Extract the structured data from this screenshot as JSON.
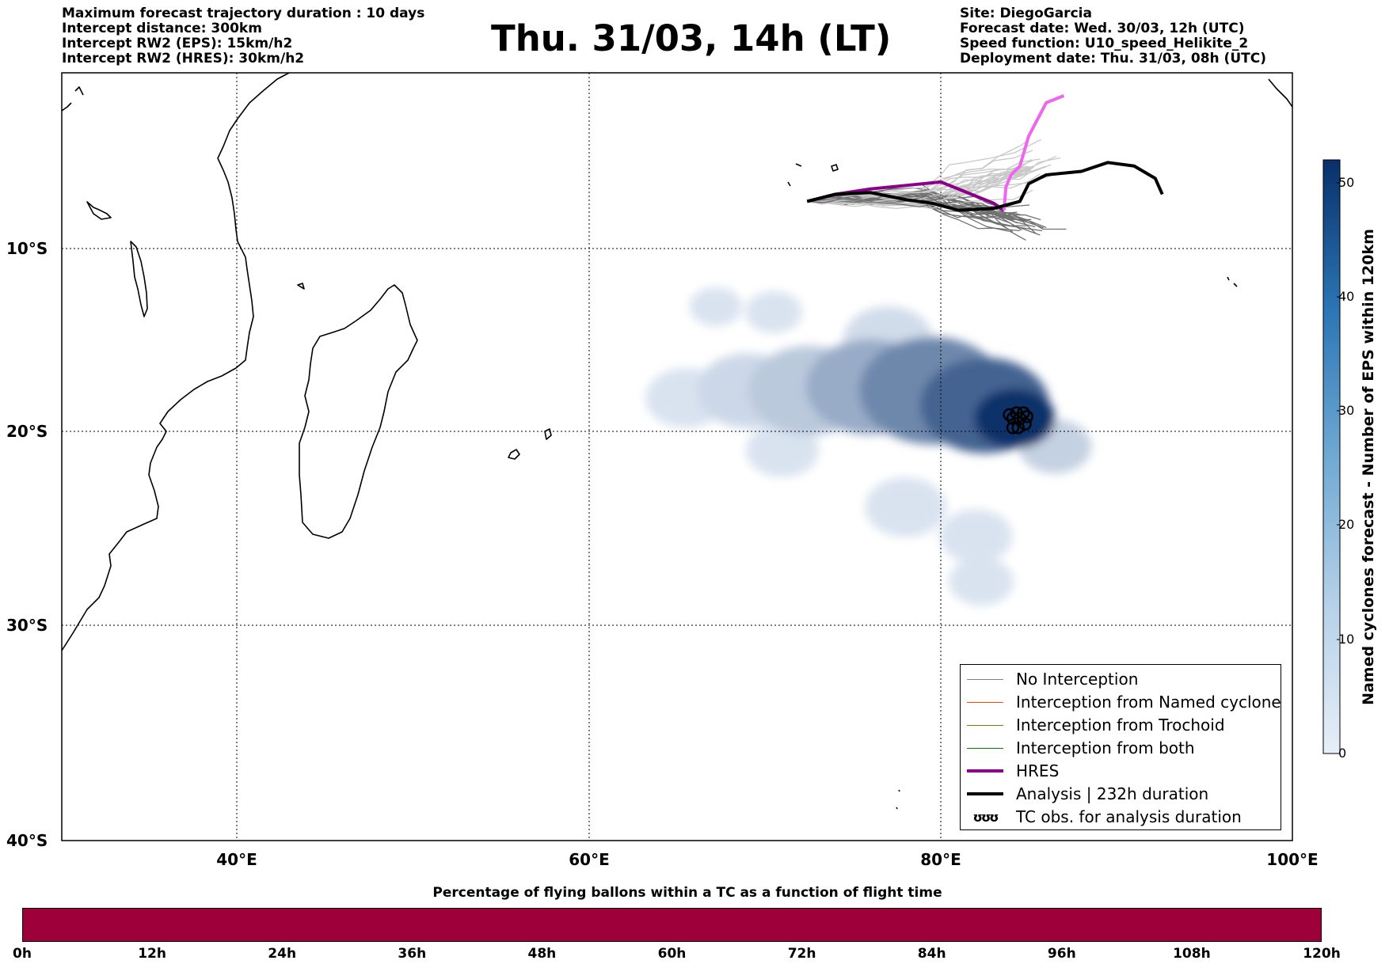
{
  "header_left": [
    "Maximum forecast trajectory duration : 10 days",
    "Intercept distance: 300km",
    "Intercept RW2 (EPS):  15km/h2",
    "Intercept RW2 (HRES): 30km/h2"
  ],
  "title": "Thu. 31/03, 14h (LT)",
  "header_right": [
    "Site: DiegoGarcia",
    "Forecast date: Wed. 30/03, 12h (UTC)",
    "Speed function: U10_speed_Helikite_2",
    "Deployment date: Thu. 31/03, 08h (UTC)"
  ],
  "map": {
    "lon_range": [
      30,
      100
    ],
    "lat_range": [
      -40,
      0
    ],
    "lat_labels": [
      {
        "lat": -10,
        "label": "10°S"
      },
      {
        "lat": -20,
        "label": "20°S"
      },
      {
        "lat": -30,
        "label": "30°S"
      },
      {
        "lat": -40,
        "label": "40°S"
      }
    ],
    "lon_labels": [
      {
        "lon": 40,
        "label": "40°E"
      },
      {
        "lon": 60,
        "label": "60°E"
      },
      {
        "lon": 80,
        "label": "80°E"
      },
      {
        "lon": 100,
        "label": "100°E"
      }
    ],
    "site": {
      "name": "DiegoGarcia",
      "lon": 72.4,
      "lat": -7.3
    },
    "hres_track": [
      [
        72.4,
        -7.3
      ],
      [
        74,
        -6.9
      ],
      [
        76,
        -6.6
      ],
      [
        78,
        -6.4
      ],
      [
        80,
        -6.2
      ],
      [
        81.5,
        -6.8
      ],
      [
        83,
        -7.4
      ],
      [
        83.6,
        -7.8
      ],
      [
        83.7,
        -6.5
      ],
      [
        84,
        -5.8
      ],
      [
        84.5,
        -5.3
      ],
      [
        85,
        -3.6
      ],
      [
        86,
        -1.7
      ],
      [
        87,
        -1.3
      ]
    ],
    "analysis_track": [
      [
        72.4,
        -7.3
      ],
      [
        74,
        -6.9
      ],
      [
        76,
        -6.8
      ],
      [
        78,
        -7.2
      ],
      [
        79.5,
        -7.4
      ],
      [
        81,
        -7.8
      ],
      [
        83,
        -7.7
      ],
      [
        84.5,
        -7.3
      ],
      [
        85,
        -6.3
      ],
      [
        86,
        -5.8
      ],
      [
        88,
        -5.6
      ],
      [
        89.5,
        -5.1
      ],
      [
        91,
        -5.3
      ],
      [
        92.2,
        -6.0
      ],
      [
        92.6,
        -6.9
      ]
    ],
    "tc_obs": [
      [
        83.9,
        -19.1
      ],
      [
        84.1,
        -19.3
      ],
      [
        84.3,
        -19.0
      ],
      [
        84.5,
        -19.3
      ],
      [
        84.7,
        -19.0
      ],
      [
        84.1,
        -19.8
      ],
      [
        84.4,
        -19.8
      ],
      [
        84.8,
        -19.6
      ],
      [
        84.9,
        -19.2
      ]
    ],
    "density_blobs": [
      {
        "lon": 84.2,
        "lat": -19.3,
        "r": 2.0,
        "level": 52
      },
      {
        "lon": 82.5,
        "lat": -18.6,
        "r": 3.2,
        "level": 38
      },
      {
        "lon": 79.5,
        "lat": -17.8,
        "r": 3.6,
        "level": 28
      },
      {
        "lon": 76.0,
        "lat": -17.6,
        "r": 3.2,
        "level": 18
      },
      {
        "lon": 72.5,
        "lat": -17.8,
        "r": 3.0,
        "level": 10
      },
      {
        "lon": 69.0,
        "lat": -17.8,
        "r": 2.5,
        "level": 6
      },
      {
        "lon": 65.5,
        "lat": -18.2,
        "r": 2.0,
        "level": 3
      },
      {
        "lon": 67.2,
        "lat": -13.2,
        "r": 1.3,
        "level": 3
      },
      {
        "lon": 70.5,
        "lat": -13.5,
        "r": 1.4,
        "level": 3
      },
      {
        "lon": 71.0,
        "lat": -21.0,
        "r": 1.8,
        "level": 3
      },
      {
        "lon": 86.5,
        "lat": -20.8,
        "r": 1.8,
        "level": 8
      },
      {
        "lon": 78.0,
        "lat": -24.0,
        "r": 2.0,
        "level": 3
      },
      {
        "lon": 82.0,
        "lat": -25.5,
        "r": 1.8,
        "level": 3
      },
      {
        "lon": 82.3,
        "lat": -27.8,
        "r": 1.6,
        "level": 3
      },
      {
        "lon": 77.0,
        "lat": -15.0,
        "r": 2.2,
        "level": 5
      }
    ]
  },
  "colorbar": {
    "label": "Named cyclones forecast - Number of EPS within 120km",
    "min": 0,
    "max": 52,
    "ticks": [
      0,
      10,
      20,
      30,
      40,
      50
    ],
    "low_color": "#e6eef8",
    "high_color": "#08306b"
  },
  "legend": [
    {
      "label": "No Interception",
      "color": "#808080",
      "width": 1.5,
      "style": "line"
    },
    {
      "label": "Interception from Named cyclone",
      "color": "#ff4500",
      "width": 1.5,
      "style": "line"
    },
    {
      "label": "Interception from Trochoid",
      "color": "#808000",
      "width": 1.5,
      "style": "line"
    },
    {
      "label": "Interception from both",
      "color": "#008000",
      "width": 1.5,
      "style": "line"
    },
    {
      "label": "HRES",
      "color": "#8b008b",
      "width": 4,
      "style": "line"
    },
    {
      "label": "Analysis | 232h duration",
      "color": "#000000",
      "width": 4,
      "style": "line"
    },
    {
      "label": "TC obs. for analysis duration",
      "symbol": "ʊʊʊ",
      "style": "symbol"
    }
  ],
  "bottom": {
    "title": "Percentage of flying ballons within a TC as a function of flight time",
    "fraction": 1.0,
    "bar_color": "#9e003a",
    "ticks": [
      "0h",
      "12h",
      "24h",
      "36h",
      "48h",
      "60h",
      "72h",
      "84h",
      "96h",
      "108h",
      "120h"
    ]
  }
}
